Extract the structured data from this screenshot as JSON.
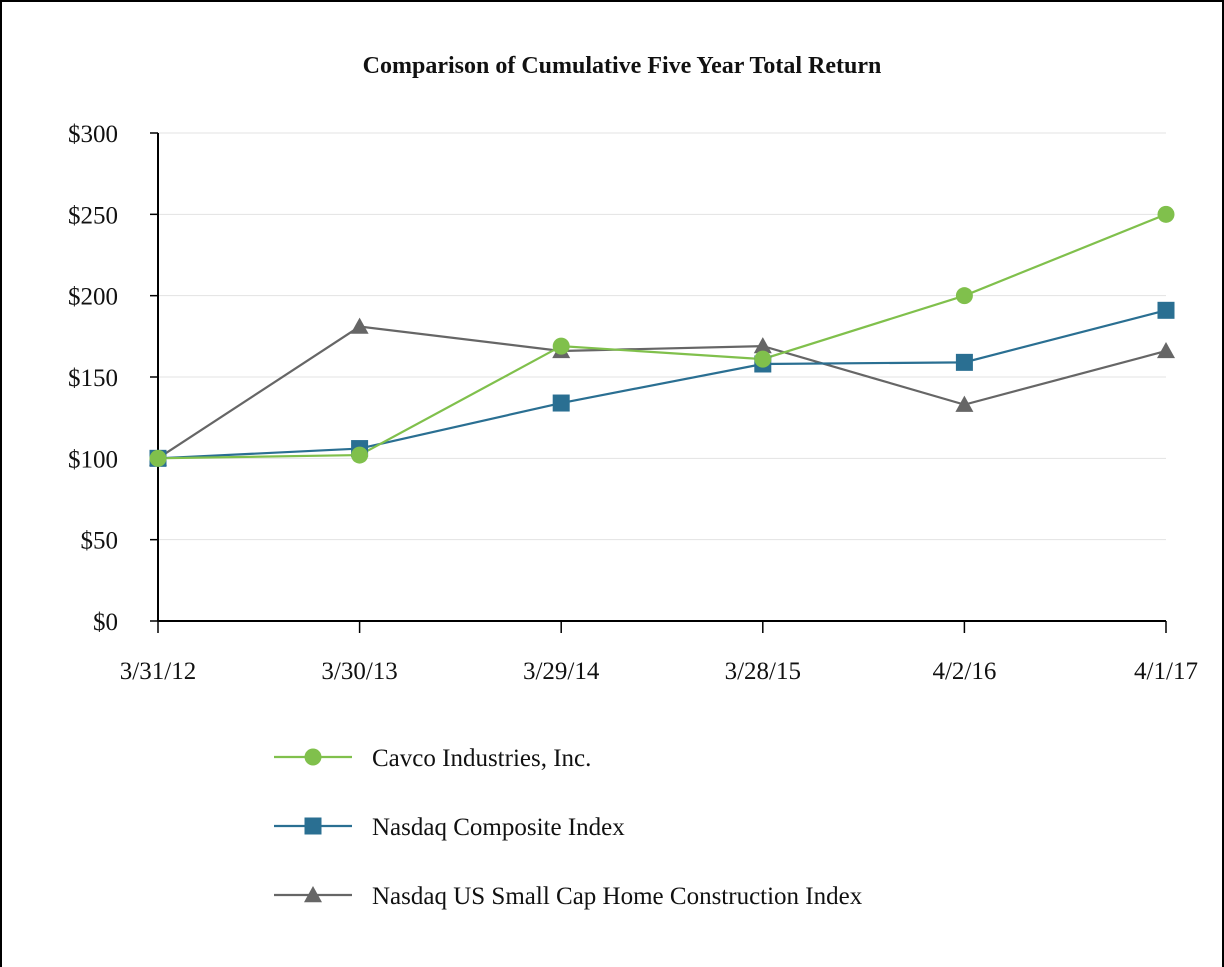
{
  "chart_data": {
    "type": "line",
    "title": "Comparison of Cumulative Five Year Total Return",
    "xlabel": "",
    "ylabel": "",
    "categories": [
      "3/31/12",
      "3/30/13",
      "3/29/14",
      "3/28/15",
      "4/2/16",
      "4/1/17"
    ],
    "ylim": [
      0,
      300
    ],
    "yticks": [
      0,
      50,
      100,
      150,
      200,
      250,
      300
    ],
    "ytick_labels": [
      "$0",
      "$50",
      "$100",
      "$150",
      "$200",
      "$250",
      "$300"
    ],
    "grid": true,
    "legend_position": "bottom",
    "series": [
      {
        "name": "Cavco Industries, Inc.",
        "marker": "circle",
        "color": "#80c04c",
        "values": [
          100,
          102,
          169,
          161,
          200,
          250
        ]
      },
      {
        "name": "Nasdaq Composite Index",
        "marker": "square",
        "color": "#2a6f92",
        "values": [
          100,
          106,
          134,
          158,
          159,
          191
        ]
      },
      {
        "name": "Nasdaq US Small Cap Home Construction Index",
        "marker": "triangle",
        "color": "#666666",
        "values": [
          100,
          181,
          166,
          169,
          133,
          166
        ]
      }
    ]
  }
}
